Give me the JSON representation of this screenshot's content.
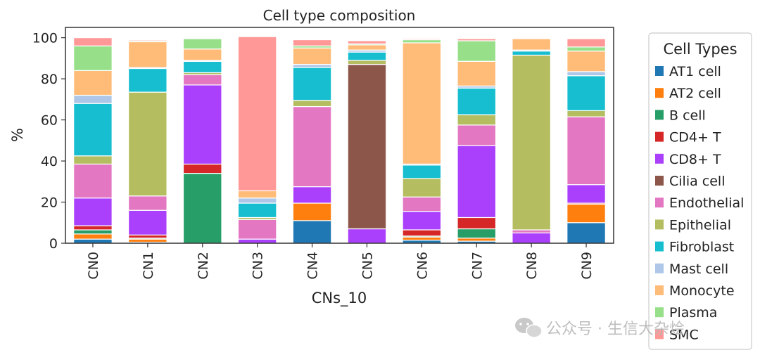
{
  "chart_data": {
    "type": "bar",
    "stacked": true,
    "title": "Cell type composition",
    "xlabel": "CNs_10",
    "ylabel": "%",
    "ylim": [
      0,
      105
    ],
    "yticks": [
      "0",
      "20",
      "40",
      "60",
      "80",
      "100"
    ],
    "categories": [
      "CN0",
      "CN1",
      "CN2",
      "CN3",
      "CN4",
      "CN5",
      "CN6",
      "CN7",
      "CN8",
      "CN9"
    ],
    "legend_title": "Cell Types",
    "legend_position": "right",
    "series": [
      {
        "name": "AT1 cell",
        "color": "#1f77b4",
        "values": [
          2,
          0.5,
          0,
          0,
          11,
          0,
          1.5,
          1,
          0,
          10
        ]
      },
      {
        "name": "AT2 cell",
        "color": "#ff7f0e",
        "values": [
          2.5,
          1.5,
          0,
          0,
          8.5,
          0,
          1.5,
          1.5,
          0,
          9
        ]
      },
      {
        "name": "B cell",
        "color": "#279e68",
        "values": [
          2,
          0.5,
          34,
          0,
          0,
          0,
          0.5,
          4.5,
          0,
          0
        ]
      },
      {
        "name": "CD4+ T",
        "color": "#d62728",
        "values": [
          2,
          1.5,
          4.5,
          0,
          0,
          0,
          3,
          5.5,
          0,
          0.5
        ]
      },
      {
        "name": "CD8+ T",
        "color": "#aa40fc",
        "values": [
          13.5,
          12,
          38.5,
          2,
          8,
          7,
          9,
          35,
          5,
          9
        ]
      },
      {
        "name": "Cilia cell",
        "color": "#8c564b",
        "values": [
          0,
          0,
          0,
          0,
          0,
          80,
          0,
          0,
          0,
          0
        ]
      },
      {
        "name": "Endothelial",
        "color": "#e377c2",
        "values": [
          16.5,
          7,
          5,
          9.5,
          39,
          0,
          7,
          10,
          1.5,
          33
        ]
      },
      {
        "name": "Epithelial",
        "color": "#b5bd61",
        "values": [
          4,
          50.5,
          1,
          1,
          3,
          2,
          9,
          5,
          85,
          3
        ]
      },
      {
        "name": "Fibroblast",
        "color": "#17becf",
        "values": [
          25.5,
          11.5,
          5.5,
          7,
          16,
          4,
          6.5,
          13,
          2,
          17
        ]
      },
      {
        "name": "Mast cell",
        "color": "#aec7e8",
        "values": [
          4,
          0.5,
          0.5,
          2.5,
          1.5,
          1,
          0.5,
          1,
          0.5,
          2
        ]
      },
      {
        "name": "Monocyte",
        "color": "#ffbb78",
        "values": [
          12,
          12.5,
          5.5,
          3.5,
          8,
          2.5,
          59,
          12,
          5.5,
          10
        ]
      },
      {
        "name": "Plasma",
        "color": "#98df8a",
        "values": [
          12,
          0.5,
          5,
          0,
          1,
          0.5,
          1.5,
          10,
          0,
          2
        ]
      },
      {
        "name": "SMC",
        "color": "#ff9896",
        "values": [
          4,
          0.5,
          0,
          75,
          3,
          1.5,
          0.5,
          1,
          0,
          4
        ]
      }
    ]
  },
  "watermark": {
    "text": "公众号 · 生信大杂烩",
    "icon": "wechat-icon"
  }
}
